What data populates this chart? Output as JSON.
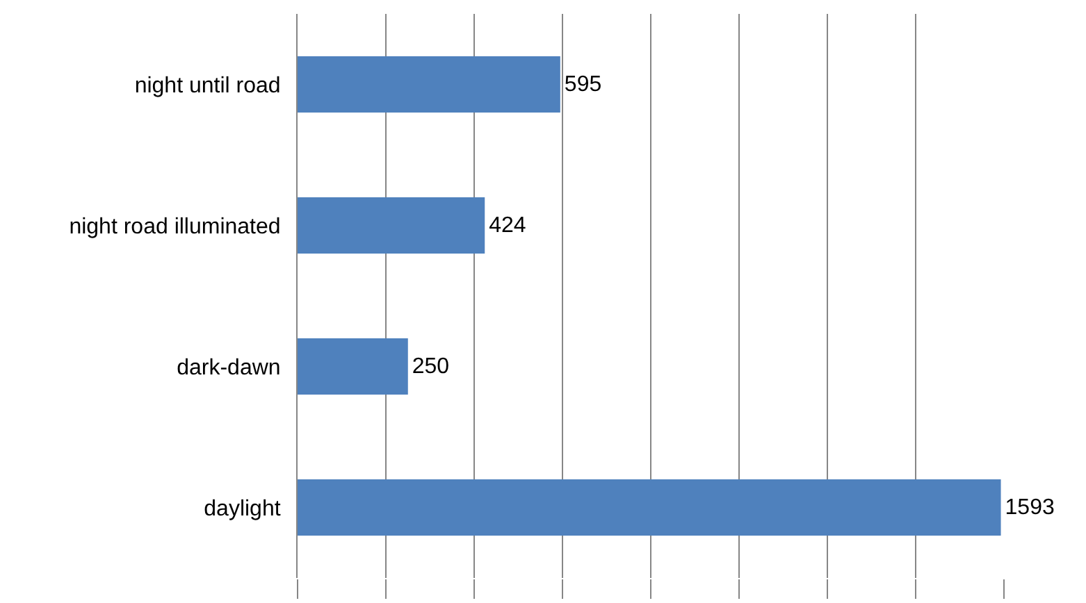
{
  "chart_data": {
    "type": "bar",
    "orientation": "horizontal",
    "categories": [
      "night until road",
      "night road illuminated",
      "dark-dawn",
      "daylight"
    ],
    "values": [
      595,
      424,
      250,
      1593
    ],
    "color": "#4f81bd",
    "xlim": [
      0,
      1600
    ],
    "xticks": [
      {
        "value": 0,
        "label": null
      },
      {
        "value": 200,
        "label": null
      },
      {
        "value": 400,
        "label": null
      },
      {
        "value": 600,
        "label": null
      },
      {
        "value": 800,
        "label": null
      },
      {
        "value": 1000,
        "label": null
      },
      {
        "value": 1200,
        "label": null
      },
      {
        "value": 1400,
        "label": null
      },
      {
        "value": 1600,
        "label": null
      }
    ],
    "tick_labels": "y",
    "grid": "x",
    "data_labels": true
  }
}
